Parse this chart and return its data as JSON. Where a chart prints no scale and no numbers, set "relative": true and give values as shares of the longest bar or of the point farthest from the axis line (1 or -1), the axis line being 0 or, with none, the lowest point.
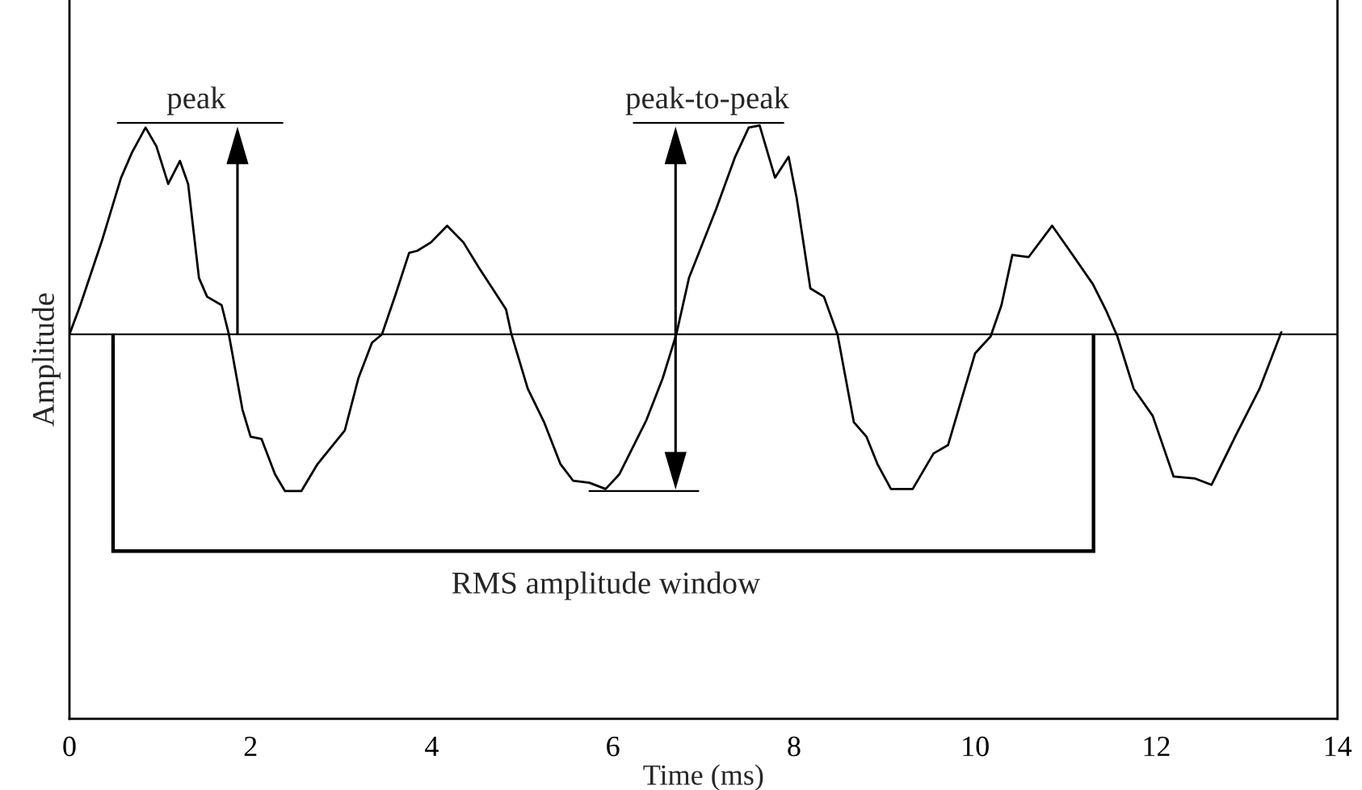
{
  "chart_data": {
    "type": "line",
    "relative": true,
    "xlabel": "Time (ms)",
    "ylabel": "Amplitude",
    "color": "#000000",
    "x": [
      0,
      0.12,
      0.36,
      0.57,
      0.69,
      0.84,
      0.96,
      1.09,
      1.22,
      1.31,
      1.43,
      1.52,
      1.68,
      1.76,
      1.91,
      2.0,
      2.12,
      2.27,
      2.38,
      2.56,
      2.74,
      2.89,
      3.04,
      3.19,
      3.34,
      3.45,
      3.6,
      3.75,
      3.84,
      3.99,
      4.17,
      4.35,
      4.52,
      4.7,
      4.82,
      4.88,
      5.06,
      5.24,
      5.42,
      5.56,
      5.74,
      5.92,
      6.07,
      6.37,
      6.55,
      6.7,
      6.84,
      7.14,
      7.35,
      7.5,
      7.62,
      7.79,
      7.94,
      8.03,
      8.18,
      8.33,
      8.48,
      8.66,
      8.8,
      8.92,
      9.07,
      9.31,
      9.54,
      9.7,
      9.85,
      10.0,
      10.17,
      10.29,
      10.41,
      10.59,
      10.85,
      11.06,
      11.3,
      11.45,
      11.57,
      11.75,
      11.96,
      12.19,
      12.43,
      12.61,
      12.87,
      13.14,
      13.38
    ],
    "values": [
      0,
      0.14,
      0.45,
      0.75,
      0.87,
      0.99,
      0.9,
      0.72,
      0.83,
      0.72,
      0.27,
      0.18,
      0.14,
      0,
      -0.36,
      -0.49,
      -0.5,
      -0.67,
      -0.75,
      -0.75,
      -0.62,
      -0.54,
      -0.46,
      -0.21,
      -0.04,
      0,
      0.19,
      0.39,
      0.4,
      0.44,
      0.52,
      0.44,
      0.32,
      0.2,
      0.12,
      0,
      -0.26,
      -0.42,
      -0.62,
      -0.7,
      -0.71,
      -0.74,
      -0.67,
      -0.41,
      -0.21,
      0,
      0.27,
      0.6,
      0.85,
      0.99,
      1.0,
      0.75,
      0.85,
      0.65,
      0.22,
      0.18,
      0,
      -0.42,
      -0.49,
      -0.62,
      -0.74,
      -0.74,
      -0.57,
      -0.53,
      -0.31,
      -0.09,
      -0.01,
      0.14,
      0.38,
      0.37,
      0.52,
      0.39,
      0.24,
      0.11,
      -0.01,
      -0.26,
      -0.39,
      -0.68,
      -0.69,
      -0.72,
      -0.49,
      -0.26,
      0.01
    ],
    "xlim": [
      0,
      14
    ],
    "xticks": [
      0,
      2,
      4,
      6,
      8,
      10,
      12,
      14
    ],
    "ref_lines": [
      {
        "axis": "y",
        "value": 0
      }
    ],
    "annotations": [
      "peak",
      "peak-to-peak",
      "RMS amplitude window"
    ],
    "grid": false,
    "marker": "none",
    "line_style": "solid"
  }
}
